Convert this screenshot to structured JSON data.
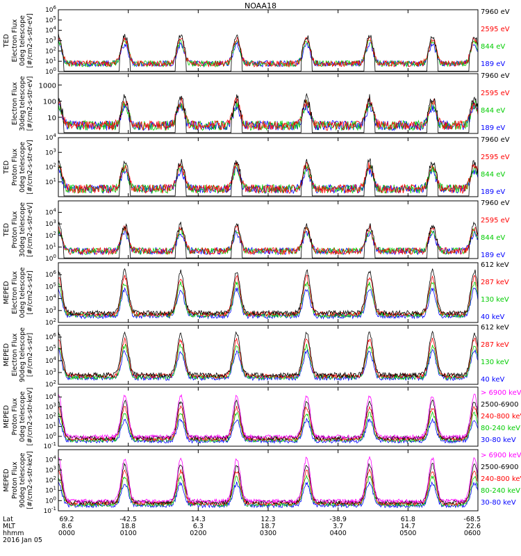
{
  "figure_title": "NOAA18",
  "chart_data": {
    "type": "line",
    "title": "NOAA18",
    "x_axis": {
      "rows": [
        {
          "name": "Lat",
          "values": [
            "69.2",
            "-42.5",
            "14.3",
            "12.3",
            "-38.9",
            "61.8",
            "-68.5"
          ]
        },
        {
          "name": "MLT",
          "values": [
            "8.6",
            "18.8",
            "6.3",
            "18.7",
            "3.7",
            "14.7",
            "22.6"
          ]
        },
        {
          "name": "hhmm",
          "values": [
            "0000",
            "0100",
            "0200",
            "0300",
            "0400",
            "0500",
            "0600"
          ]
        }
      ],
      "date": "2016 Jan 05",
      "xlim_hours": [
        0,
        6
      ]
    },
    "panels": [
      {
        "instrument": "TED",
        "ylabel": [
          "Electron Flux",
          "0deg telescope",
          "[#/cm2-s-str-eV]"
        ],
        "ylim": [
          1,
          1000000
        ],
        "ytick_exp": [
          0,
          1,
          2,
          3,
          4,
          5,
          6
        ],
        "series": [
          {
            "name": "7960 eV",
            "color": "#000000"
          },
          {
            "name": "2595 eV",
            "color": "#ff0000"
          },
          {
            "name": "844 eV",
            "color": "#00cc00"
          },
          {
            "name": "189 eV",
            "color": "#0000ff"
          }
        ]
      },
      {
        "instrument": "",
        "ylabel": [
          "Electron Flux",
          "30deg telescope",
          "[#/cm2-s-str-eV]"
        ],
        "ylim": [
          1,
          5000
        ],
        "ytick_labels": [
          "10",
          "100",
          "1000"
        ],
        "series": [
          {
            "name": "7960 eV",
            "color": "#000000"
          },
          {
            "name": "2595 eV",
            "color": "#ff0000"
          },
          {
            "name": "844 eV",
            "color": "#00cc00"
          },
          {
            "name": "189 eV",
            "color": "#0000ff"
          }
        ]
      },
      {
        "instrument": "TED",
        "ylabel": [
          "Proton Flux",
          "0deg telescope",
          "[#/cm2-s-str-eV]"
        ],
        "ylim": [
          1,
          10000
        ],
        "ytick_exp": [
          1,
          2,
          3,
          4
        ],
        "series": [
          {
            "name": "7960 eV",
            "color": "#000000"
          },
          {
            "name": "2595 eV",
            "color": "#ff0000"
          },
          {
            "name": "844 eV",
            "color": "#00cc00"
          },
          {
            "name": "189 eV",
            "color": "#0000ff"
          }
        ]
      },
      {
        "instrument": "TED",
        "ylabel": [
          "Proton Flux",
          "30deg telescope",
          "[#/cm2-s-str-eV]"
        ],
        "ylim": [
          1,
          100000
        ],
        "ytick_exp": [
          0,
          1,
          2,
          3,
          4
        ],
        "series": [
          {
            "name": "7960 eV",
            "color": "#000000"
          },
          {
            "name": "2595 eV",
            "color": "#ff0000"
          },
          {
            "name": "844 eV",
            "color": "#00cc00"
          },
          {
            "name": "189 eV",
            "color": "#0000ff"
          }
        ]
      },
      {
        "instrument": "MEPED",
        "ylabel": [
          "Electron Flux",
          "0deg telescope",
          "[#/cm2-s-str]"
        ],
        "ylim": [
          100,
          10000000
        ],
        "ytick_exp": [
          2,
          3,
          4,
          5,
          6
        ],
        "series": [
          {
            "name": "612 keV",
            "color": "#000000"
          },
          {
            "name": "287 keV",
            "color": "#ff0000"
          },
          {
            "name": "130 keV",
            "color": "#00cc00"
          },
          {
            "name": "40 keV",
            "color": "#0000ff"
          }
        ]
      },
      {
        "instrument": "MEPED",
        "ylabel": [
          "Electron Flux",
          "90deg telescope",
          "[#/cm2-s-str]"
        ],
        "ylim": [
          100,
          10000000
        ],
        "ytick_exp": [
          2,
          3,
          4,
          5,
          6
        ],
        "series": [
          {
            "name": "612 keV",
            "color": "#000000"
          },
          {
            "name": "287 keV",
            "color": "#ff0000"
          },
          {
            "name": "130 keV",
            "color": "#00cc00"
          },
          {
            "name": "40 keV",
            "color": "#0000ff"
          }
        ]
      },
      {
        "instrument": "MEPED",
        "ylabel": [
          "Proton Flux",
          "0deg telescope",
          "[#/cm2-s-str-keV]"
        ],
        "ylim": [
          0.1,
          100000
        ],
        "ytick_exp": [
          -1,
          0,
          1,
          2,
          3,
          4
        ],
        "series": [
          {
            "name": "> 6900 keV",
            "color": "#ff00ff"
          },
          {
            "name": "2500-6900",
            "color": "#000000"
          },
          {
            "name": "240-800 keV",
            "color": "#ff0000"
          },
          {
            "name": "80-240 keV",
            "color": "#00cc00"
          },
          {
            "name": "30-80 keV",
            "color": "#0000ff"
          }
        ]
      },
      {
        "instrument": "MEPED",
        "ylabel": [
          "Proton Flux",
          "90deg telescope",
          "[#/cm2-s-str-keV]"
        ],
        "ylim": [
          0.1,
          100000
        ],
        "ytick_exp": [
          -1,
          0,
          1,
          2,
          3,
          4
        ],
        "series": [
          {
            "name": "> 6900 keV",
            "color": "#ff00ff"
          },
          {
            "name": "2500-6900",
            "color": "#000000"
          },
          {
            "name": "240-800 keV",
            "color": "#ff0000"
          },
          {
            "name": "80-240 keV",
            "color": "#00cc00"
          },
          {
            "name": "30-80 keV",
            "color": "#0000ff"
          }
        ]
      }
    ]
  }
}
